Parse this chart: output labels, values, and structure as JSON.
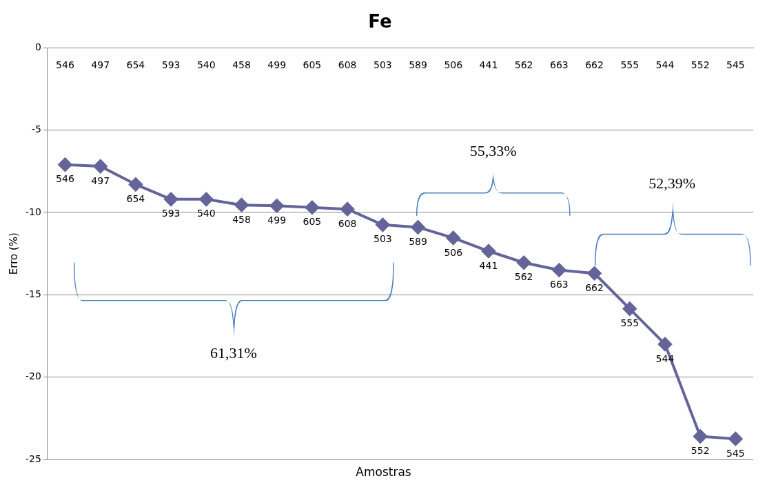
{
  "chart_data": {
    "type": "line",
    "title": "Fe",
    "xlabel": "Amostras",
    "ylabel": "Erro (%)",
    "categories": [
      "546",
      "497",
      "654",
      "593",
      "540",
      "458",
      "499",
      "605",
      "608",
      "503",
      "589",
      "506",
      "441",
      "562",
      "663",
      "662",
      "555",
      "544",
      "552",
      "545"
    ],
    "series": [
      {
        "color": "#64649a",
        "values": [
          -7.1,
          -7.2,
          -8.3,
          -9.2,
          -9.2,
          -9.55,
          -9.6,
          -9.7,
          -9.8,
          -10.75,
          -10.9,
          -11.55,
          -12.35,
          -13.05,
          -13.5,
          -13.7,
          -15.85,
          -18.0,
          -23.6,
          -23.75
        ]
      }
    ],
    "annotations": [
      "61,31%",
      "55,33%",
      "52,39%",
      {
        "text": "546",
        "x": "546",
        "y": -7.1
      },
      {
        "text": "497",
        "x": "497",
        "y": -7.2
      },
      {
        "text": "654",
        "x": "654",
        "y": -8.3
      },
      {
        "text": "593",
        "x": "593",
        "y": -9.2
      },
      {
        "text": "540",
        "x": "540",
        "y": -9.2
      },
      {
        "text": "458",
        "x": "458",
        "y": -9.55
      },
      {
        "text": "499",
        "x": "499",
        "y": -9.6
      },
      {
        "text": "605",
        "x": "605",
        "y": -9.7
      },
      {
        "text": "608",
        "x": "608",
        "y": -9.8
      },
      {
        "text": "503",
        "x": "503",
        "y": -10.75
      },
      {
        "text": "589",
        "x": "589",
        "y": -10.9
      },
      {
        "text": "506",
        "x": "506",
        "y": -11.55
      },
      {
        "text": "441",
        "x": "441",
        "y": -12.35
      },
      {
        "text": "562",
        "x": "562",
        "y": -13.05
      },
      {
        "text": "663",
        "x": "663",
        "y": -13.5
      },
      {
        "text": "662",
        "x": "662",
        "y": -13.7
      },
      {
        "text": "555",
        "x": "555",
        "y": -15.85
      },
      {
        "text": "544",
        "x": "544",
        "y": -18.0
      },
      {
        "text": "552",
        "x": "552",
        "y": -23.6
      },
      {
        "text": "545",
        "x": "545",
        "y": -23.75
      }
    ],
    "ylim": [
      -25,
      0
    ],
    "yticks": [
      -25,
      -20,
      -15,
      -10,
      -5,
      0
    ],
    "grid": "y",
    "legend": false,
    "marker": "diamond",
    "line_style": "solid"
  }
}
